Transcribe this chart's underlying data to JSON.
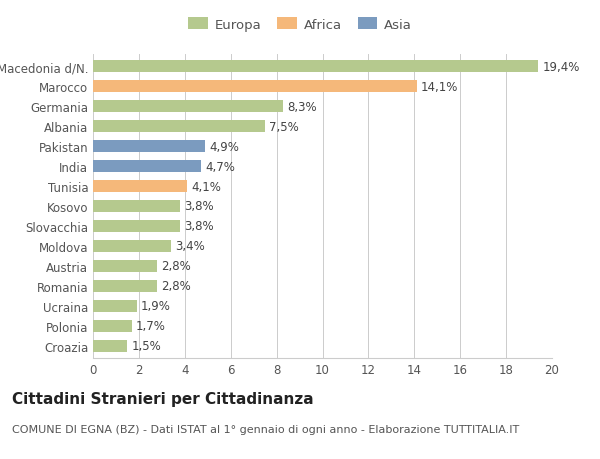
{
  "categories": [
    "Macedonia d/N.",
    "Marocco",
    "Germania",
    "Albania",
    "Pakistan",
    "India",
    "Tunisia",
    "Kosovo",
    "Slovacchia",
    "Moldova",
    "Austria",
    "Romania",
    "Ucraina",
    "Polonia",
    "Croazia"
  ],
  "values": [
    19.4,
    14.1,
    8.3,
    7.5,
    4.9,
    4.7,
    4.1,
    3.8,
    3.8,
    3.4,
    2.8,
    2.8,
    1.9,
    1.7,
    1.5
  ],
  "labels": [
    "19,4%",
    "14,1%",
    "8,3%",
    "7,5%",
    "4,9%",
    "4,7%",
    "4,1%",
    "3,8%",
    "3,8%",
    "3,4%",
    "2,8%",
    "2,8%",
    "1,9%",
    "1,7%",
    "1,5%"
  ],
  "colors": [
    "#b5c98e",
    "#f5b87a",
    "#b5c98e",
    "#b5c98e",
    "#7b9bbf",
    "#7b9bbf",
    "#f5b87a",
    "#b5c98e",
    "#b5c98e",
    "#b5c98e",
    "#b5c98e",
    "#b5c98e",
    "#b5c98e",
    "#b5c98e",
    "#b5c98e"
  ],
  "legend_labels": [
    "Europa",
    "Africa",
    "Asia"
  ],
  "legend_colors": [
    "#b5c98e",
    "#f5b87a",
    "#7b9bbf"
  ],
  "title": "Cittadini Stranieri per Cittadinanza",
  "subtitle": "COMUNE DI EGNA (BZ) - Dati ISTAT al 1° gennaio di ogni anno - Elaborazione TUTTITALIA.IT",
  "xlim": [
    0,
    20
  ],
  "xticks": [
    0,
    2,
    4,
    6,
    8,
    10,
    12,
    14,
    16,
    18,
    20
  ],
  "background_color": "#ffffff",
  "grid_color": "#cccccc",
  "bar_height": 0.6,
  "label_fontsize": 8.5,
  "tick_fontsize": 8.5,
  "legend_fontsize": 9.5,
  "title_fontsize": 11,
  "subtitle_fontsize": 8
}
